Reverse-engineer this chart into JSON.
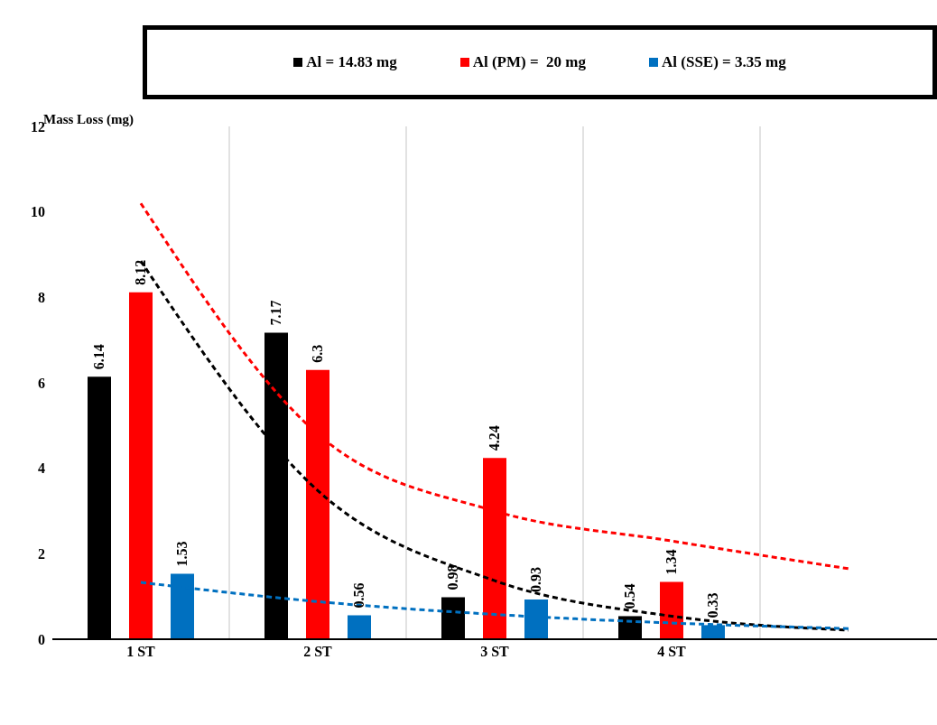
{
  "chart_data": {
    "type": "bar",
    "ylabel": "Mass Loss (mg)",
    "categories": [
      "1 ST",
      "2 ST",
      "3 ST",
      "4 ST",
      null
    ],
    "series": [
      {
        "name": "Al = 14.83 mg",
        "color": "#000000",
        "values": [
          6.14,
          7.17,
          0.98,
          0.54,
          null
        ],
        "value_labels": [
          "6.14",
          "7.17",
          "0.98",
          "0.54",
          null
        ]
      },
      {
        "name": "Al (PM) =  20 mg",
        "color": "#ff0000",
        "values": [
          8.12,
          6.3,
          4.24,
          1.34,
          null
        ],
        "value_labels": [
          "8.12",
          "6.3",
          "4.24",
          "1.34",
          null
        ]
      },
      {
        "name": "Al (SSE) = 3.35 mg",
        "color": "#0070c0",
        "values": [
          1.53,
          0.56,
          0.93,
          0.33,
          null
        ],
        "value_labels": [
          "1.53",
          "0.56",
          "0.93",
          "0.33",
          null
        ]
      },
      {
        "type": "line",
        "color": "#000000",
        "line_style": "dashed",
        "values": [
          8.85,
          3.48,
          1.37,
          0.54,
          0.21
        ]
      },
      {
        "type": "line",
        "color": "#ff0000",
        "line_style": "dashed",
        "values": [
          10.2,
          4.8,
          3.0,
          2.3,
          1.65
        ]
      },
      {
        "type": "line",
        "color": "#0070c0",
        "line_style": "dashed",
        "values": [
          1.33,
          0.88,
          0.58,
          0.38,
          0.25
        ]
      }
    ],
    "ylim": [
      0,
      12
    ],
    "yticks": [
      0,
      2,
      4,
      6,
      8,
      10,
      12
    ],
    "grid": "x",
    "legend": "top"
  }
}
